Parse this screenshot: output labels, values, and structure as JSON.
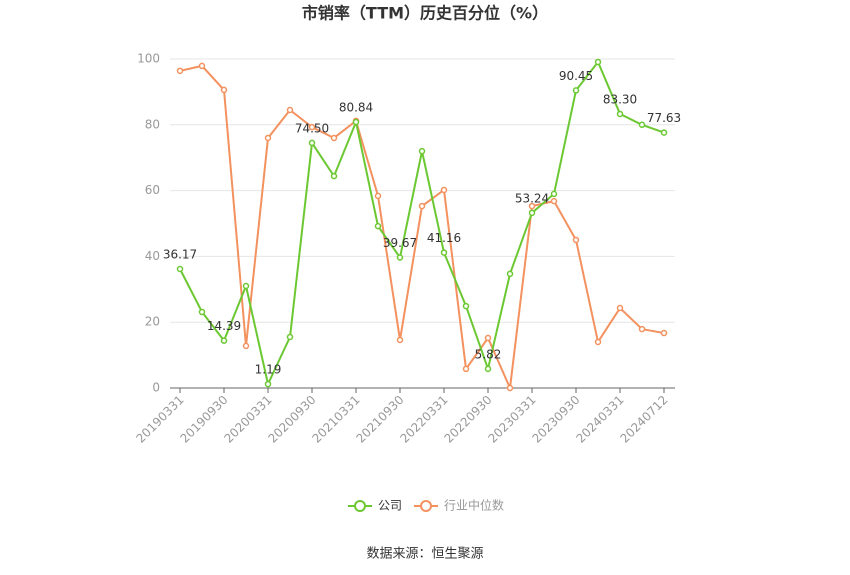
{
  "chart_data": {
    "type": "line",
    "title": "市销率（TTM）历史百分位（%）",
    "source": "数据来源：恒生聚源",
    "categories": [
      "20190331",
      null,
      "20190930",
      null,
      "20200331",
      null,
      "20200930",
      null,
      "20210331",
      null,
      "20210930",
      null,
      "20220331",
      null,
      "20220930",
      null,
      "20230331",
      null,
      "20230930",
      null,
      "20240331",
      null,
      "20240712"
    ],
    "series": [
      {
        "name": "公司",
        "color": "#6cc832",
        "values": [
          36.17,
          23.1,
          14.39,
          31.0,
          1.19,
          15.5,
          74.5,
          64.4,
          80.84,
          49.2,
          39.67,
          72.0,
          41.16,
          24.9,
          5.82,
          34.7,
          53.24,
          59.0,
          90.45,
          99.1,
          83.3,
          80.0,
          77.63
        ],
        "value_labels": [
          "36.17",
          null,
          "14.39",
          null,
          "1.19",
          null,
          "74.50",
          null,
          "80.84",
          null,
          "39.67",
          null,
          "41.16",
          null,
          "5.82",
          null,
          "53.24",
          null,
          "90.45",
          null,
          "83.30",
          null,
          "77.63"
        ]
      },
      {
        "name": "行业中位数",
        "color": "#f3915f",
        "values": [
          96.4,
          97.9,
          90.6,
          12.8,
          76.0,
          84.5,
          79.3,
          76.0,
          81.2,
          58.4,
          14.6,
          55.3,
          60.2,
          5.8,
          15.2,
          0,
          55.3,
          56.8,
          45.0,
          14.0,
          24.3,
          17.9,
          16.7
        ]
      }
    ],
    "ylim": [
      0,
      100
    ],
    "yticks": [
      0,
      20,
      40,
      60,
      80,
      100
    ],
    "grid": true
  }
}
